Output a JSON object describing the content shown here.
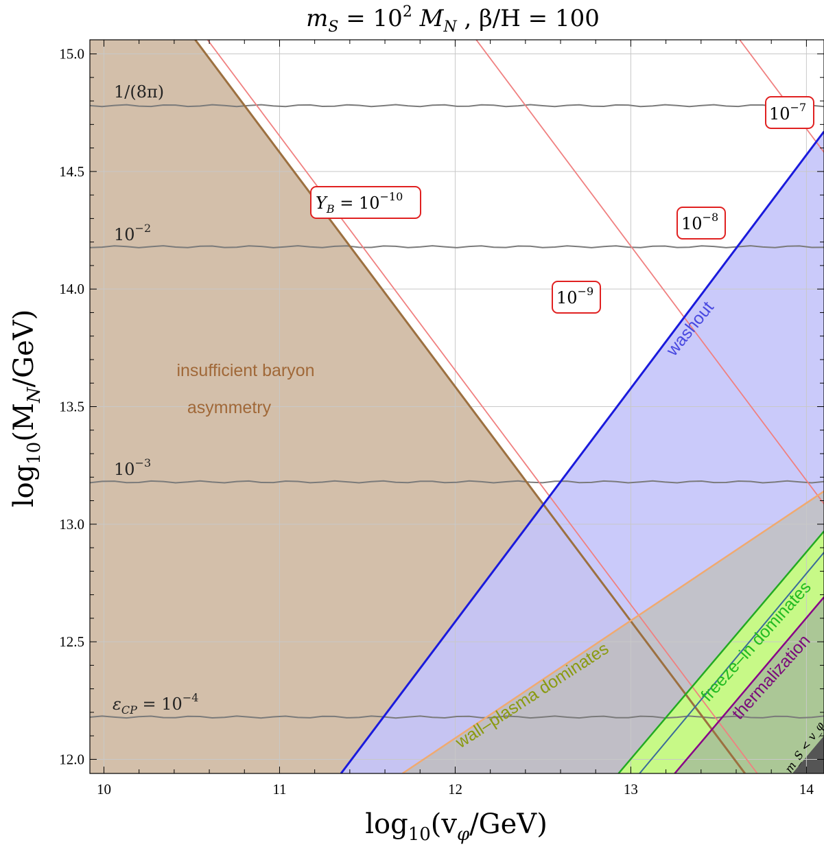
{
  "chart_data": {
    "type": "area",
    "title": "m_S = 10^2 M_N , β/H = 100",
    "xlabel": "log10(v_φ/GeV)",
    "ylabel": "log10(M_N/GeV)",
    "xlim": [
      9.92,
      14.1
    ],
    "ylim": [
      11.94,
      15.06
    ],
    "x_ticks": [
      "10",
      "11",
      "12",
      "13",
      "14"
    ],
    "y_ticks": [
      "12.0",
      "12.5",
      "13.0",
      "13.5",
      "14.0",
      "14.5",
      "15.0"
    ],
    "grid": true,
    "regions": [
      {
        "name": "insufficient baryon asymmetry",
        "color": "#a0724a",
        "boundary": [
          [
            10.52,
            15.06
          ],
          [
            13.65,
            11.94
          ]
        ]
      },
      {
        "name": "washout",
        "color": "#0000ee",
        "boundary": [
          [
            11.35,
            11.94
          ],
          [
            14.1,
            14.67
          ]
        ]
      },
      {
        "name": "wall-plasma dominates",
        "color": "#e8a060",
        "boundary": [
          [
            11.7,
            11.94
          ],
          [
            14.1,
            13.14
          ]
        ]
      },
      {
        "name": "freeze-in dominates",
        "color": "#22aa22",
        "boundary": [
          [
            12.93,
            11.94
          ],
          [
            14.1,
            12.97
          ]
        ]
      },
      {
        "name": "thermalization",
        "color": "#880088",
        "boundary": [
          [
            13.25,
            11.94
          ],
          [
            14.1,
            12.69
          ]
        ]
      },
      {
        "name": "m_S < v_φ",
        "color": "#444444",
        "boundary": [
          [
            13.92,
            11.94
          ],
          [
            14.1,
            12.1
          ]
        ]
      }
    ],
    "eps_cp_contours": [
      {
        "label": "1/(8π)",
        "y": 14.78
      },
      {
        "label": "10^-2",
        "y": 14.18
      },
      {
        "label": "10^-3",
        "y": 13.18
      },
      {
        "label": "ε_CP = 10^-4",
        "y": 12.18
      }
    ],
    "yb_contours": [
      {
        "label": "Y_B = 10^-10",
        "x_top": 10.57,
        "x_bottom": 13.7
      },
      {
        "label": "10^-9",
        "x_top": 12.12,
        "x_bottom": 14.1
      },
      {
        "label": "10^-8",
        "x_top": 13.6,
        "x_bottom": 14.1
      },
      {
        "label": "10^-7",
        "x_top": 14.1,
        "x_bottom": 14.1
      }
    ]
  },
  "labels": {
    "title_ms": "m",
    "title_S": "S",
    "title_eq1": " = 10",
    "title_exp": "2",
    "title_MN": " M",
    "title_N": "N",
    "title_rest": " , β/H = 100",
    "xlabel_log": "log",
    "xlabel_10": "10",
    "xlabel_rest": "(v",
    "xlabel_phi": "φ",
    "xlabel_end": "/GeV)",
    "ylabel_log": "log",
    "ylabel_10": "10",
    "ylabel_rest": "(M",
    "ylabel_N": "N",
    "ylabel_end": "/GeV)",
    "insufficient_1": "insufficient baryon",
    "insufficient_2": "asymmetry",
    "washout": "washout",
    "wall_plasma": "wall–plasma dominates",
    "freeze_in": "freeze–in dominates",
    "thermalization": "thermalization",
    "ms_lt_v": "m_S < v_φ",
    "eps_8pi": "1/(8π)",
    "eps_m2_base": "10",
    "eps_m2_exp": "−2",
    "eps_m3_base": "10",
    "eps_m3_exp": "−3",
    "eps_m4_pre": "ε",
    "eps_m4_sub": "CP",
    "eps_m4_eq": " = 10",
    "eps_m4_exp": "−4",
    "yb10_pre": "Y",
    "yb10_sub": "B",
    "yb10_eq": " = 10",
    "yb10_exp": "−10",
    "yb9_base": "10",
    "yb9_exp": "−9",
    "yb8_base": "10",
    "yb8_exp": "−8",
    "yb7_base": "10",
    "yb7_exp": "−7"
  },
  "colors": {
    "brown_fill": "#d3bfaa",
    "brown_line": "#9c7040",
    "blue_fill": "#c4c4fa",
    "blue_line": "#1a1adc",
    "orange_line": "#f0aa70",
    "green_fill": "#c8ff80",
    "green_line": "#22aa22",
    "purple_line": "#880088",
    "yb_line": "#f08080",
    "eps_line": "#7a7a7a",
    "label_box_border": "#e02020"
  }
}
